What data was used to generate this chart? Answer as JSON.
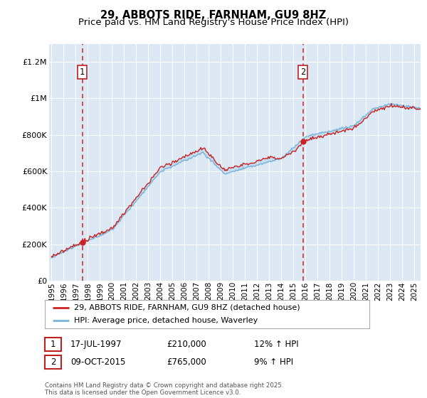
{
  "title": "29, ABBOTS RIDE, FARNHAM, GU9 8HZ",
  "subtitle": "Price paid vs. HM Land Registry's House Price Index (HPI)",
  "ylim": [
    0,
    1300000
  ],
  "xlim_start": 1994.8,
  "xlim_end": 2025.5,
  "yticks": [
    0,
    200000,
    400000,
    600000,
    800000,
    1000000,
    1200000
  ],
  "ytick_labels": [
    "£0",
    "£200K",
    "£400K",
    "£600K",
    "£800K",
    "£1M",
    "£1.2M"
  ],
  "xticks": [
    1995,
    1996,
    1997,
    1998,
    1999,
    2000,
    2001,
    2002,
    2003,
    2004,
    2005,
    2006,
    2007,
    2008,
    2009,
    2010,
    2011,
    2012,
    2013,
    2014,
    2015,
    2016,
    2017,
    2018,
    2019,
    2020,
    2021,
    2022,
    2023,
    2024,
    2025
  ],
  "hpi_color": "#7ab4d8",
  "price_color": "#cc2222",
  "dashed_color": "#cc2222",
  "plot_bg_color": "#dce9f5",
  "marker1_x": 1997.54,
  "marker1_y": 210000,
  "marker2_x": 2015.77,
  "marker2_y": 765000,
  "legend_line1": "29, ABBOTS RIDE, FARNHAM, GU9 8HZ (detached house)",
  "legend_line2": "HPI: Average price, detached house, Waverley",
  "annotation1_date": "17-JUL-1997",
  "annotation1_price": "£210,000",
  "annotation1_hpi": "12% ↑ HPI",
  "annotation2_date": "09-OCT-2015",
  "annotation2_price": "£765,000",
  "annotation2_hpi": "9% ↑ HPI",
  "footer": "Contains HM Land Registry data © Crown copyright and database right 2025.\nThis data is licensed under the Open Government Licence v3.0."
}
